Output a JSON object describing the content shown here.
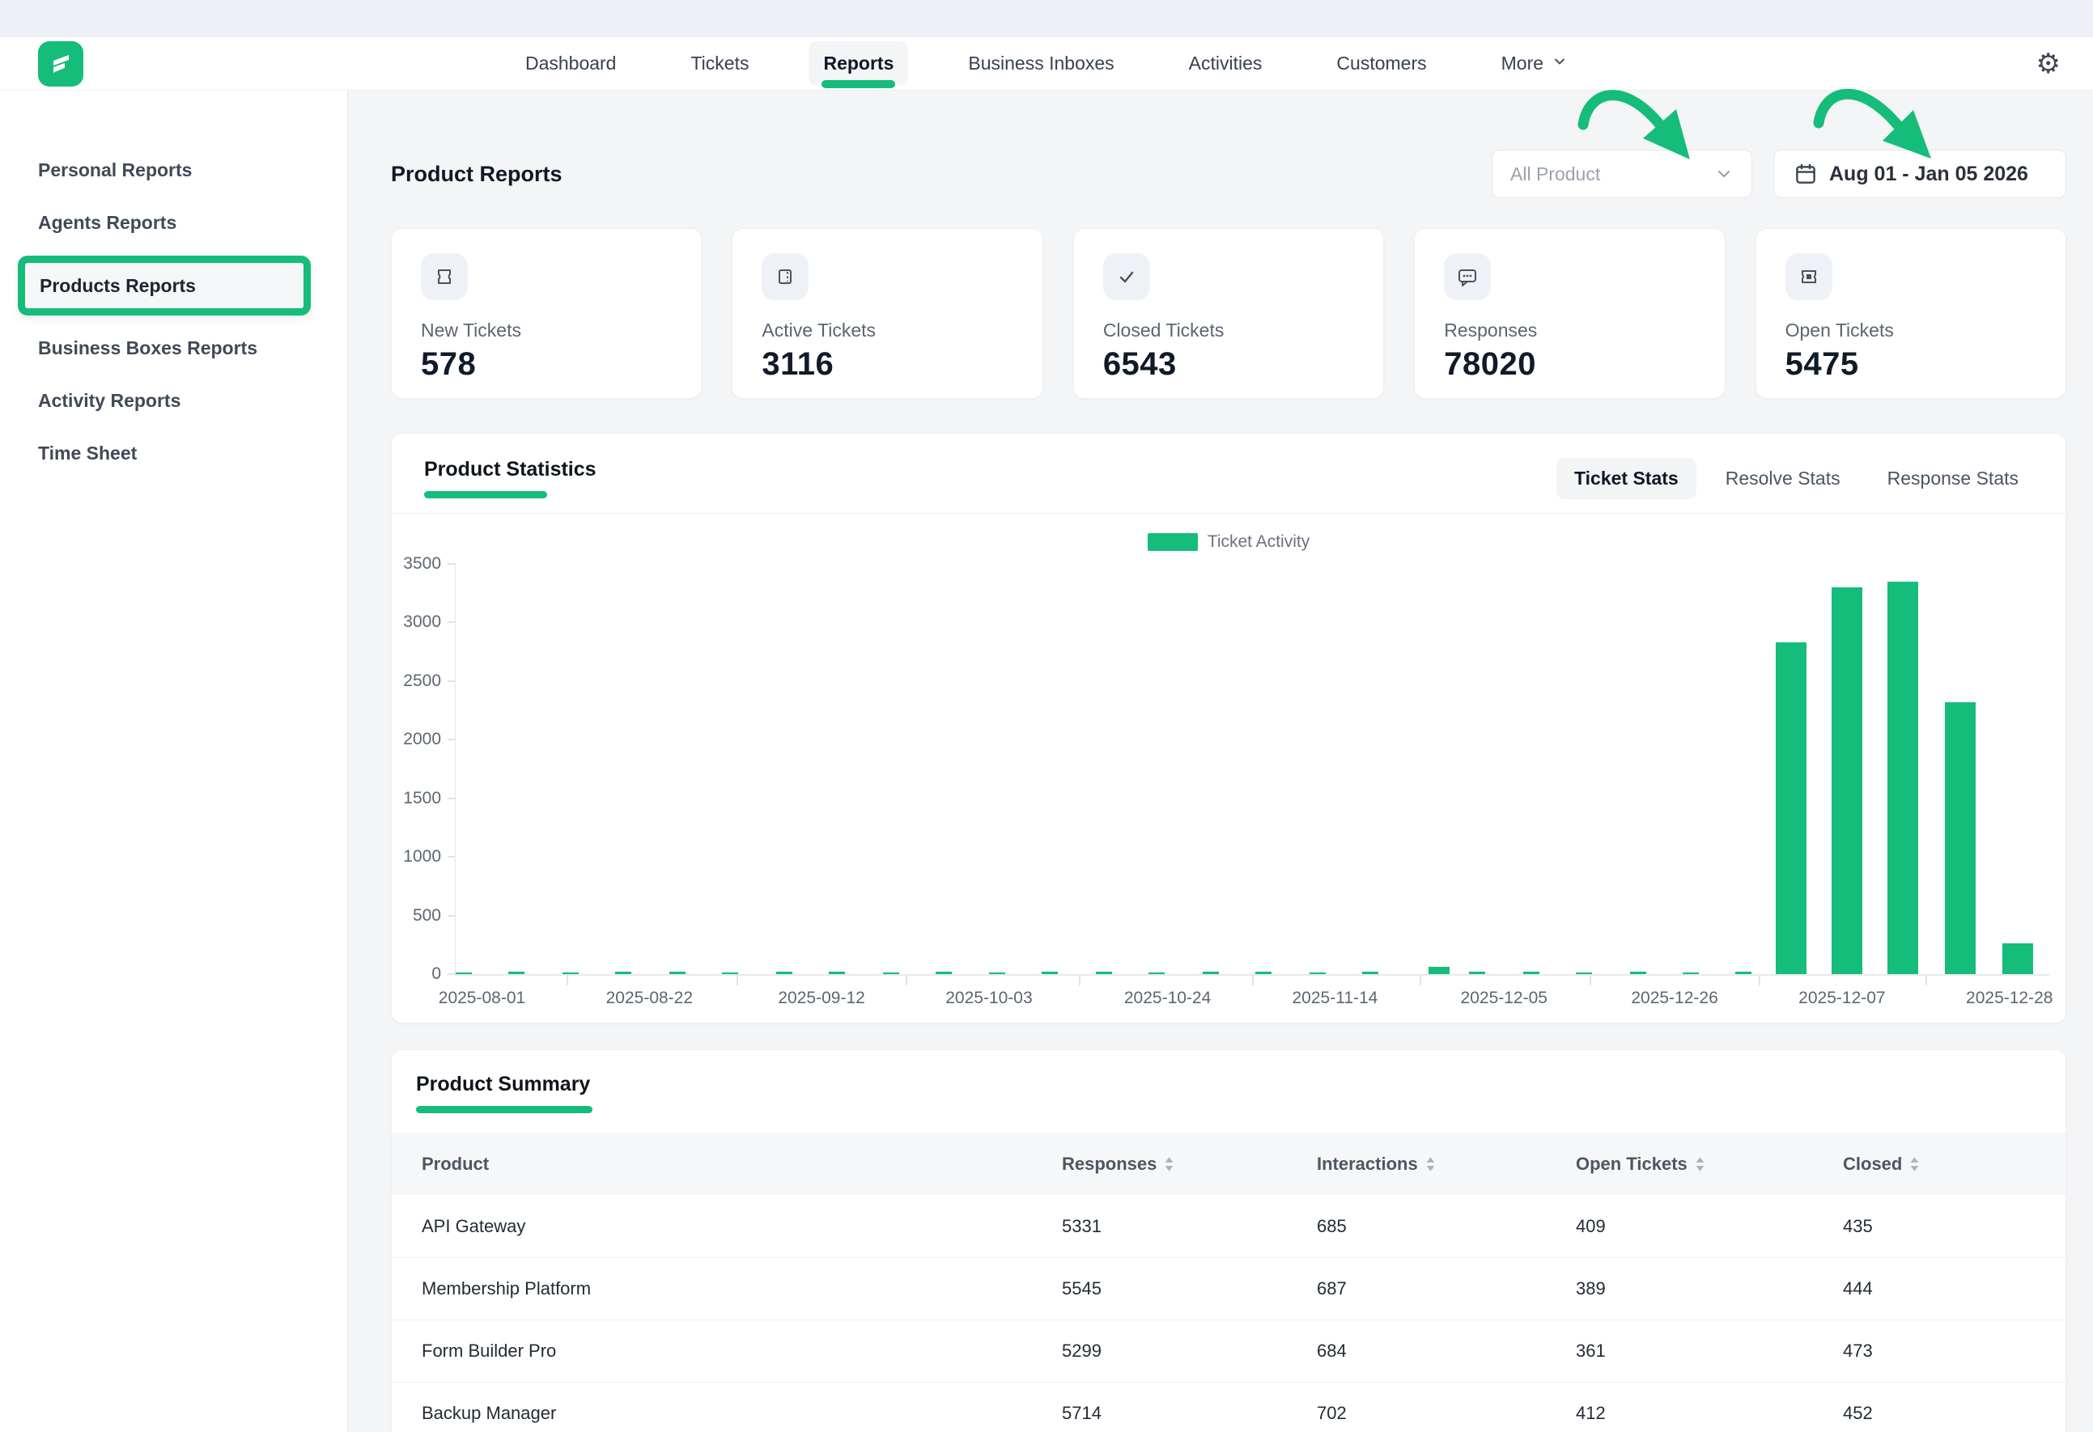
{
  "brand": {
    "accent": "#16bc7a"
  },
  "topnav": {
    "items": [
      {
        "label": "Dashboard",
        "active": false,
        "chevron": false
      },
      {
        "label": "Tickets",
        "active": false,
        "chevron": false
      },
      {
        "label": "Reports",
        "active": true,
        "chevron": false
      },
      {
        "label": "Business Inboxes",
        "active": false,
        "chevron": false
      },
      {
        "label": "Activities",
        "active": false,
        "chevron": false
      },
      {
        "label": "Customers",
        "active": false,
        "chevron": false
      },
      {
        "label": "More",
        "active": false,
        "chevron": true
      }
    ]
  },
  "sidebar": {
    "items": [
      {
        "label": "Personal Reports",
        "active": false
      },
      {
        "label": "Agents Reports",
        "active": false
      },
      {
        "label": "Products Reports",
        "active": true
      },
      {
        "label": "Business Boxes Reports",
        "active": false
      },
      {
        "label": "Activity Reports",
        "active": false
      },
      {
        "label": "Time Sheet",
        "active": false
      }
    ]
  },
  "page": {
    "title": "Product Reports"
  },
  "filters": {
    "product_dropdown": {
      "value": "All Product"
    },
    "date_range": {
      "label": "Aug 01 - Jan 05 2026"
    }
  },
  "stats": [
    {
      "icon": "new-ticket-icon",
      "label": "New Tickets",
      "value": "578"
    },
    {
      "icon": "active-ticket-icon",
      "label": "Active Tickets",
      "value": "3116"
    },
    {
      "icon": "check-icon",
      "label": "Closed Tickets",
      "value": "6543"
    },
    {
      "icon": "chat-icon",
      "label": "Responses",
      "value": "78020"
    },
    {
      "icon": "open-ticket-icon",
      "label": "Open Tickets",
      "value": "5475"
    }
  ],
  "statistics_section": {
    "title": "Product Statistics",
    "tabs": [
      {
        "label": "Ticket Stats",
        "active": true
      },
      {
        "label": "Resolve Stats",
        "active": false
      },
      {
        "label": "Response Stats",
        "active": false
      }
    ]
  },
  "chart_data": {
    "type": "bar",
    "title": "Product Statistics",
    "series_name": "Ticket Activity",
    "color": "#16bc7a",
    "grid": false,
    "legend_position": "top-center",
    "ylim": [
      0,
      3500
    ],
    "yticks": [
      0,
      500,
      1000,
      1500,
      2000,
      2500,
      3000,
      3500
    ],
    "x_tick_labels": [
      {
        "label": "2025-08-01",
        "pos": 0.017
      },
      {
        "label": "2025-08-22",
        "pos": 0.122
      },
      {
        "label": "2025-09-12",
        "pos": 0.23
      },
      {
        "label": "2025-10-03",
        "pos": 0.335
      },
      {
        "label": "2025-10-24",
        "pos": 0.447
      },
      {
        "label": "2025-11-14",
        "pos": 0.552
      },
      {
        "label": "2025-12-05",
        "pos": 0.658
      },
      {
        "label": "2025-12-26",
        "pos": 0.765
      },
      {
        "label": "2025-12-07",
        "pos": 0.87
      },
      {
        "label": "2025-12-28",
        "pos": 0.975
      }
    ],
    "bars": [
      {
        "x": 0.005,
        "v": 16,
        "w": 20
      },
      {
        "x": 0.038,
        "v": 22,
        "w": 20
      },
      {
        "x": 0.072,
        "v": 15,
        "w": 20
      },
      {
        "x": 0.105,
        "v": 20,
        "w": 20
      },
      {
        "x": 0.139,
        "v": 24,
        "w": 20
      },
      {
        "x": 0.172,
        "v": 16,
        "w": 20
      },
      {
        "x": 0.206,
        "v": 19,
        "w": 20
      },
      {
        "x": 0.239,
        "v": 22,
        "w": 20
      },
      {
        "x": 0.273,
        "v": 15,
        "w": 20
      },
      {
        "x": 0.306,
        "v": 21,
        "w": 20
      },
      {
        "x": 0.34,
        "v": 16,
        "w": 20
      },
      {
        "x": 0.373,
        "v": 20,
        "w": 20
      },
      {
        "x": 0.407,
        "v": 23,
        "w": 20
      },
      {
        "x": 0.44,
        "v": 15,
        "w": 20
      },
      {
        "x": 0.474,
        "v": 19,
        "w": 20
      },
      {
        "x": 0.507,
        "v": 22,
        "w": 20
      },
      {
        "x": 0.541,
        "v": 16,
        "w": 20
      },
      {
        "x": 0.574,
        "v": 20,
        "w": 20
      },
      {
        "x": 0.617,
        "v": 60,
        "w": 26
      },
      {
        "x": 0.641,
        "v": 18,
        "w": 20
      },
      {
        "x": 0.675,
        "v": 22,
        "w": 20
      },
      {
        "x": 0.708,
        "v": 15,
        "w": 20
      },
      {
        "x": 0.742,
        "v": 20,
        "w": 20
      },
      {
        "x": 0.775,
        "v": 17,
        "w": 20
      },
      {
        "x": 0.808,
        "v": 21,
        "w": 20
      },
      {
        "x": 0.838,
        "v": 2830,
        "w": 38
      },
      {
        "x": 0.873,
        "v": 3300,
        "w": 38
      },
      {
        "x": 0.908,
        "v": 3350,
        "w": 38
      },
      {
        "x": 0.944,
        "v": 2320,
        "w": 38
      },
      {
        "x": 0.98,
        "v": 260,
        "w": 38
      }
    ]
  },
  "summary": {
    "title": "Product Summary",
    "columns": [
      {
        "label": "Product",
        "sortable": false
      },
      {
        "label": "Responses",
        "sortable": true
      },
      {
        "label": "Interactions",
        "sortable": true
      },
      {
        "label": "Open Tickets",
        "sortable": true
      },
      {
        "label": "Closed",
        "sortable": true
      }
    ],
    "rows": [
      [
        "API Gateway",
        "5331",
        "685",
        "409",
        "435"
      ],
      [
        "Membership Platform",
        "5545",
        "687",
        "389",
        "444"
      ],
      [
        "Form Builder Pro",
        "5299",
        "684",
        "361",
        "473"
      ],
      [
        "Backup Manager",
        "5714",
        "702",
        "412",
        "452"
      ]
    ]
  },
  "annotations": {
    "gear_glyph": "⚙"
  }
}
